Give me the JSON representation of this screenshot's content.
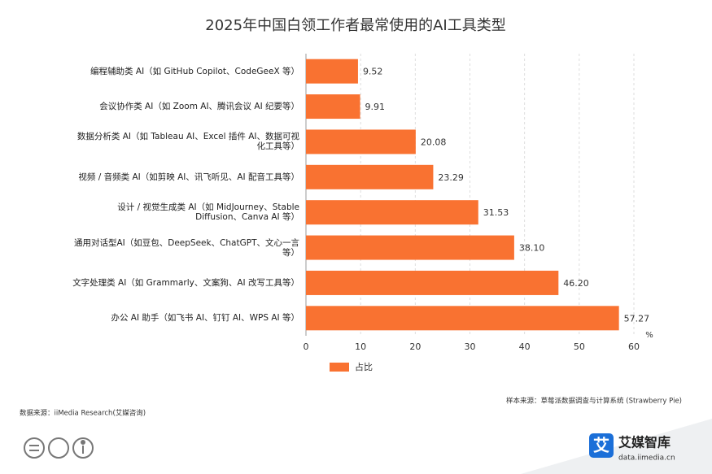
{
  "chart_data": {
    "type": "barh",
    "title": "2025年中国白领工作者最常使用的AI工具类型",
    "categories": [
      "编程辅助类 AI（如 GitHub Copilot、CodeGeeX 等）",
      "会议协作类 AI（如 Zoom AI、腾讯会议 AI 纪要等）",
      "数据分析类 AI（如 Tableau AI、Excel 插件 AI、数据可视化工具等）",
      "视频 / 音频类 AI（如剪映 AI、讯飞听见、AI 配音工具等）",
      "设计 / 视觉生成类 AI（如 MidJourney、Stable Diffusion、Canva AI 等）",
      "通用对话型AI（如豆包、DeepSeek、ChatGPT、文心一言等）",
      "文字处理类 AI（如 Grammarly、文案狗、AI 改写工具等）",
      "办公 AI 助手（如飞书 AI、钉钉 AI、WPS AI 等）"
    ],
    "series": [
      {
        "name": "占比",
        "color": "#f97231",
        "values": [
          9.52,
          9.91,
          20.08,
          23.29,
          31.53,
          38.1,
          46.2,
          57.27
        ],
        "value_labels": [
          "9.52",
          "9.91",
          "20.08",
          "23.29",
          "31.53",
          "38.10",
          "46.20",
          "57.27"
        ]
      }
    ],
    "xlim": [
      0,
      60
    ],
    "xticks": [
      0,
      10,
      20,
      30,
      40,
      50,
      60
    ],
    "grid": true,
    "unit": "%",
    "sample_source": "样本来源：草莓派数据调查与计算系统 (Strawberry Pie)",
    "data_source": "数据来源：iiMedia Research(艾媒咨询)",
    "brand": "艾媒智库",
    "brand_url": "data.iimedia.cn"
  }
}
